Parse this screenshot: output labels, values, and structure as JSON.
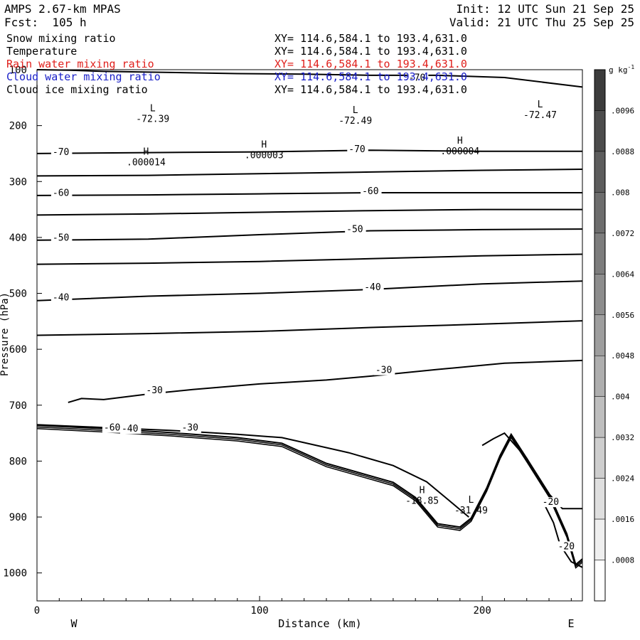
{
  "header": {
    "model": "AMPS 2.67-km MPAS",
    "forecast": "Fcst:  105 h",
    "init": "Init: 12 UTC Sun 21 Sep 25",
    "valid": "Valid: 21 UTC Thu 25 Sep 25"
  },
  "legend": [
    {
      "name": "Snow mixing ratio",
      "xy": "XY= 114.6,584.1 to 193.4,631.0",
      "color": "#000000"
    },
    {
      "name": "Temperature",
      "xy": "XY= 114.6,584.1 to 193.4,631.0",
      "color": "#000000"
    },
    {
      "name": "Rain water mixing ratio",
      "xy": "XY= 114.6,584.1 to 193.4,631.0",
      "color": "#e0201c"
    },
    {
      "name": "Cloud water mixing ratio",
      "xy": "XY= 114.6,584.1 to 193.4,631.0",
      "color": "#1a20c8"
    },
    {
      "name": "Cloud ice mixing ratio",
      "xy": "XY= 114.6,584.1 to 193.4,631.0",
      "color": "#000000"
    }
  ],
  "chart_data": {
    "type": "line",
    "xlabel": "Distance (km)",
    "ylabel": "Pressure (hPa)",
    "xlim": [
      0,
      245
    ],
    "ylim": [
      1050,
      100
    ],
    "x_ticks": [
      0,
      100,
      200
    ],
    "y_ticks": [
      100,
      200,
      300,
      400,
      500,
      600,
      700,
      800,
      900,
      1000
    ],
    "x_end_labels": {
      "left": "W",
      "right": "E"
    },
    "grid": false,
    "colorbar": {
      "unit": "g kg",
      "unit_exponent": "-1",
      "ticks": [
        ".0096",
        ".0088",
        ".008",
        ".0072",
        ".0064",
        ".0056",
        ".0048",
        ".004",
        ".0032",
        ".0024",
        ".0016",
        ".0008"
      ]
    },
    "temperature_isotherms": [
      {
        "label": "-70",
        "points": [
          [
            0,
            100
          ],
          [
            15,
            101
          ],
          [
            30,
            103
          ],
          [
            45,
            104
          ],
          [
            60,
            105
          ],
          [
            90,
            107
          ],
          [
            120,
            108
          ],
          [
            150,
            110
          ],
          [
            180,
            110
          ],
          [
            210,
            114
          ],
          [
            245,
            131
          ]
        ]
      },
      {
        "label": "-70",
        "points": [
          [
            0,
            250
          ],
          [
            60,
            248
          ],
          [
            100,
            247
          ],
          [
            150,
            244
          ],
          [
            200,
            246
          ],
          [
            245,
            246
          ]
        ]
      },
      {
        "label": "",
        "points": [
          [
            0,
            290
          ],
          [
            50,
            289
          ],
          [
            100,
            286
          ],
          [
            150,
            283
          ],
          [
            200,
            280
          ],
          [
            245,
            278
          ]
        ]
      },
      {
        "label": "-60",
        "points": [
          [
            0,
            325
          ],
          [
            50,
            324
          ],
          [
            100,
            322
          ],
          [
            150,
            320
          ],
          [
            200,
            320
          ],
          [
            245,
            320
          ]
        ]
      },
      {
        "label": "",
        "points": [
          [
            0,
            360
          ],
          [
            50,
            358
          ],
          [
            100,
            355
          ],
          [
            150,
            352
          ],
          [
            200,
            350
          ],
          [
            245,
            350
          ]
        ]
      },
      {
        "label": "-50",
        "points": [
          [
            0,
            405
          ],
          [
            50,
            403
          ],
          [
            100,
            395
          ],
          [
            150,
            388
          ],
          [
            200,
            386
          ],
          [
            245,
            385
          ]
        ]
      },
      {
        "label": "",
        "points": [
          [
            0,
            448
          ],
          [
            50,
            446
          ],
          [
            100,
            443
          ],
          [
            150,
            438
          ],
          [
            200,
            433
          ],
          [
            245,
            430
          ]
        ]
      },
      {
        "label": "-40",
        "points": [
          [
            0,
            513
          ],
          [
            50,
            505
          ],
          [
            100,
            500
          ],
          [
            150,
            493
          ],
          [
            200,
            483
          ],
          [
            245,
            478
          ]
        ]
      },
      {
        "label": "",
        "points": [
          [
            0,
            575
          ],
          [
            50,
            572
          ],
          [
            100,
            568
          ],
          [
            150,
            561
          ],
          [
            200,
            555
          ],
          [
            245,
            549
          ]
        ]
      },
      {
        "label": "-30",
        "points": [
          [
            14,
            695
          ],
          [
            20,
            688
          ],
          [
            30,
            690
          ],
          [
            50,
            680
          ],
          [
            70,
            672
          ],
          [
            100,
            662
          ],
          [
            130,
            655
          ],
          [
            150,
            648
          ],
          [
            180,
            636
          ],
          [
            210,
            625
          ],
          [
            245,
            620
          ]
        ]
      },
      {
        "label": "-30",
        "points": [
          [
            0,
            735
          ],
          [
            30,
            740
          ],
          [
            60,
            745
          ],
          [
            90,
            752
          ],
          [
            110,
            758
          ],
          [
            140,
            785
          ],
          [
            160,
            808
          ],
          [
            175,
            837
          ],
          [
            185,
            870
          ],
          [
            194,
            900
          ]
        ]
      },
      {
        "label": "-20",
        "points": [
          [
            200,
            772
          ],
          [
            205,
            760
          ],
          [
            210,
            750
          ],
          [
            220,
            795
          ],
          [
            228,
            850
          ],
          [
            236,
            885
          ],
          [
            245,
            885
          ]
        ]
      },
      {
        "label": "-20",
        "points": [
          [
            227,
            870
          ],
          [
            232,
            910
          ],
          [
            235,
            950
          ],
          [
            240,
            980
          ],
          [
            245,
            990
          ]
        ]
      }
    ],
    "terrain_profile": [
      [
        0,
        736
      ],
      [
        30,
        742
      ],
      [
        60,
        749
      ],
      [
        90,
        758
      ],
      [
        110,
        768
      ],
      [
        130,
        804
      ],
      [
        160,
        838
      ],
      [
        170,
        865
      ],
      [
        180,
        912
      ],
      [
        190,
        918
      ],
      [
        195,
        902
      ],
      [
        202,
        848
      ],
      [
        208,
        790
      ],
      [
        213,
        752
      ],
      [
        220,
        795
      ],
      [
        230,
        858
      ],
      [
        238,
        930
      ],
      [
        242,
        985
      ],
      [
        245,
        975
      ]
    ],
    "extrema": [
      {
        "type": "L",
        "value": "-72.39",
        "x": 52,
        "p": 187
      },
      {
        "type": "L",
        "value": "-72.49",
        "x": 143,
        "p": 190
      },
      {
        "type": "L",
        "value": "-72.47",
        "x": 226,
        "p": 180
      },
      {
        "type": "H",
        "value": ".000014",
        "x": 49,
        "p": 265
      },
      {
        "type": "H",
        "value": ".000003",
        "x": 102,
        "p": 252
      },
      {
        "type": "H",
        "value": ".000004",
        "x": 190,
        "p": 245
      },
      {
        "type": "H",
        "value": "-18.85",
        "x": 173,
        "p": 870
      },
      {
        "type": "L",
        "value": "-31.49",
        "x": 195,
        "p": 887
      }
    ],
    "inline_labels": [
      {
        "text": "-70",
        "x": 167,
        "p": 117
      },
      {
        "text": "-70",
        "x": 7,
        "p": 250
      },
      {
        "text": "-70",
        "x": 140,
        "p": 245
      },
      {
        "text": "-60",
        "x": 7,
        "p": 323
      },
      {
        "text": "-60",
        "x": 146,
        "p": 320
      },
      {
        "text": "-50",
        "x": 7,
        "p": 403
      },
      {
        "text": "-50",
        "x": 139,
        "p": 388
      },
      {
        "text": "-40",
        "x": 7,
        "p": 510
      },
      {
        "text": "-40",
        "x": 147,
        "p": 492
      },
      {
        "text": "-30",
        "x": 152,
        "p": 640
      },
      {
        "text": "-30",
        "x": 49,
        "p": 676
      },
      {
        "text": "-60",
        "x": 30,
        "p": 743
      },
      {
        "text": "-40",
        "x": 38,
        "p": 745
      },
      {
        "text": "-30",
        "x": 65,
        "p": 743
      },
      {
        "text": "-20",
        "x": 227,
        "p": 876
      },
      {
        "text": "-20",
        "x": 234,
        "p": 955
      }
    ]
  }
}
